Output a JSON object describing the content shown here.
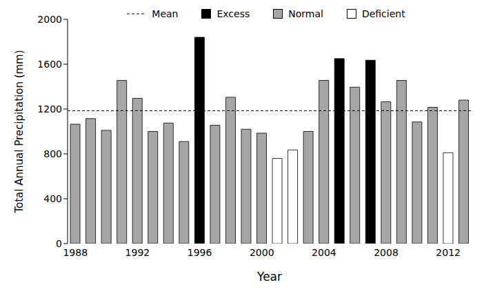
{
  "chart_data": {
    "type": "bar",
    "x_label": "Year",
    "y_label": "Total Annual Precipitation (mm)",
    "categories": [
      "1988",
      null,
      null,
      null,
      "1992",
      null,
      null,
      null,
      "1996",
      null,
      null,
      null,
      "2000",
      null,
      null,
      null,
      "2004",
      null,
      null,
      null,
      "2008",
      null,
      null,
      null,
      "2012",
      null
    ],
    "series": [
      {
        "name": "Excess",
        "color": "#000000",
        "values": [
          null,
          null,
          null,
          null,
          null,
          null,
          null,
          null,
          1840,
          null,
          null,
          null,
          null,
          null,
          null,
          null,
          null,
          1650,
          null,
          1635,
          null,
          null,
          null,
          null,
          null,
          null
        ]
      },
      {
        "name": "Normal",
        "color": "#a6a6a6",
        "values": [
          1065,
          1115,
          1010,
          1455,
          1295,
          1000,
          1075,
          910,
          null,
          1055,
          1305,
          1020,
          985,
          null,
          null,
          1000,
          1455,
          null,
          1395,
          null,
          1265,
          1455,
          1085,
          1215,
          null,
          1280
        ]
      },
      {
        "name": "Deficient",
        "color": "#ffffff",
        "values": [
          null,
          null,
          null,
          null,
          null,
          null,
          null,
          null,
          null,
          null,
          null,
          null,
          null,
          760,
          835,
          null,
          null,
          null,
          null,
          null,
          null,
          null,
          null,
          null,
          810,
          null
        ]
      }
    ],
    "mean_line": {
      "label": "Mean",
      "value": 1185,
      "line_style": "dashed"
    },
    "stacked": true,
    "ylim": [
      0,
      2000
    ],
    "yticks": [
      0,
      400,
      800,
      1200,
      1600,
      2000
    ],
    "grid": false,
    "legend": "top"
  }
}
